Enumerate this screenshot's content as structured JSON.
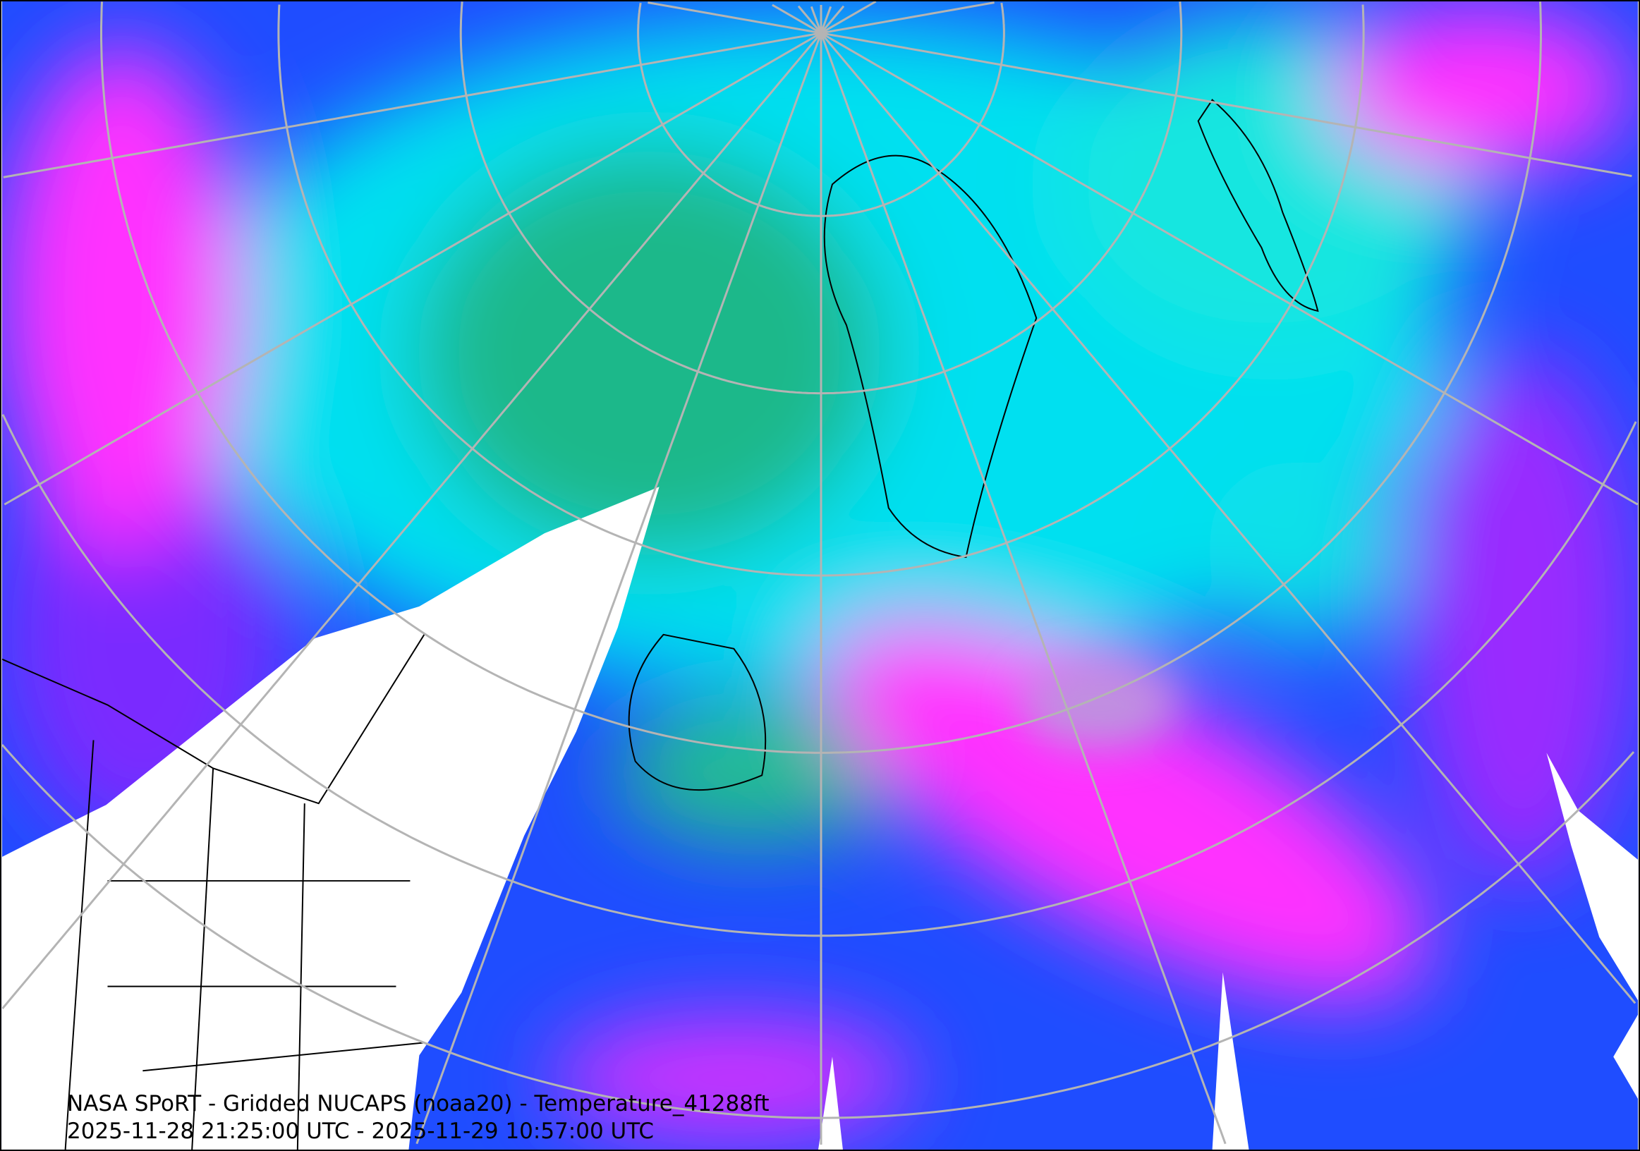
{
  "map": {
    "projection": "north-polar-stereographic",
    "variable": "Temperature",
    "colors": {
      "background": "#1f4dff",
      "cyan": "#00e8f0",
      "green": "#1fb88a",
      "magenta": "#ff30ff",
      "purple": "#9a2cff",
      "no_data": "#ffffff",
      "graticule": "#b4b4b4",
      "borders": "#000000"
    }
  },
  "caption": {
    "line1": "NASA SPoRT - Gridded NUCAPS (noaa20) - Temperature_41288ft",
    "line2": "2025-11-28 21:25:00 UTC - 2025-11-29 10:57:00 UTC"
  }
}
